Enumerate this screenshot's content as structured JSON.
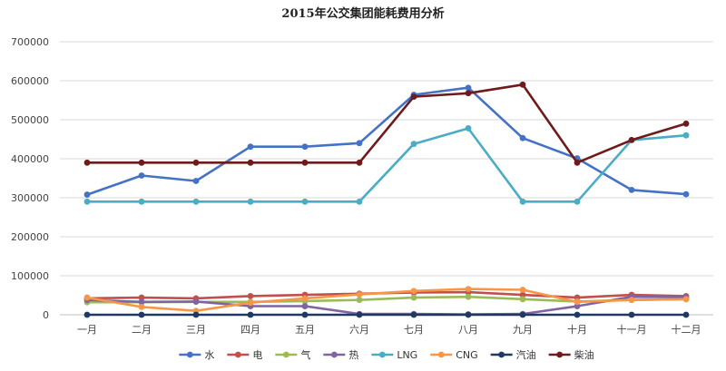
{
  "chart_data": {
    "type": "line",
    "title": "2015年公交集团能耗费用分析",
    "xlabel": "",
    "ylabel": "",
    "ylim": [
      0,
      700000
    ],
    "yticks": [
      0,
      100000,
      200000,
      300000,
      400000,
      500000,
      600000,
      700000
    ],
    "grid": true,
    "legend_position": "bottom",
    "categories": [
      "一月",
      "二月",
      "三月",
      "四月",
      "五月",
      "六月",
      "七月",
      "八月",
      "九月",
      "十月",
      "十一月",
      "十二月"
    ],
    "series": [
      {
        "name": "水",
        "color": "#4472C4",
        "values": [
          308000,
          357000,
          343000,
          431000,
          431000,
          440000,
          564000,
          582000,
          453000,
          401000,
          320000,
          309000
        ]
      },
      {
        "name": "电",
        "color": "#C0504D",
        "values": [
          42000,
          44000,
          42000,
          48000,
          51000,
          54000,
          57000,
          58000,
          51000,
          44000,
          51000,
          48000
        ]
      },
      {
        "name": "气",
        "color": "#9BBB59",
        "values": [
          32000,
          32000,
          33000,
          33000,
          35000,
          38000,
          44000,
          46000,
          40000,
          34000,
          38000,
          40000
        ]
      },
      {
        "name": "热",
        "color": "#8064A2",
        "values": [
          38000,
          33000,
          34000,
          22000,
          22000,
          2000,
          2000,
          1000,
          2000,
          22000,
          46000,
          45000
        ]
      },
      {
        "name": "LNG",
        "color": "#4BACC6",
        "values": [
          290000,
          290000,
          290000,
          290000,
          290000,
          290000,
          438000,
          478000,
          290000,
          290000,
          448000,
          460000
        ]
      },
      {
        "name": "CNG",
        "color": "#F79646",
        "values": [
          44000,
          20000,
          10000,
          31000,
          42000,
          52000,
          61000,
          66000,
          64000,
          33000,
          38000,
          40000
        ]
      },
      {
        "name": "汽油",
        "color": "#1F3864",
        "values": [
          0,
          0,
          0,
          0,
          0,
          0,
          0,
          0,
          0,
          0,
          0,
          0
        ]
      },
      {
        "name": "柴油",
        "color": "#6E1B1B",
        "values": [
          390000,
          390000,
          390000,
          390000,
          390000,
          390000,
          559000,
          568000,
          590000,
          390000,
          448000,
          490000
        ]
      }
    ]
  }
}
